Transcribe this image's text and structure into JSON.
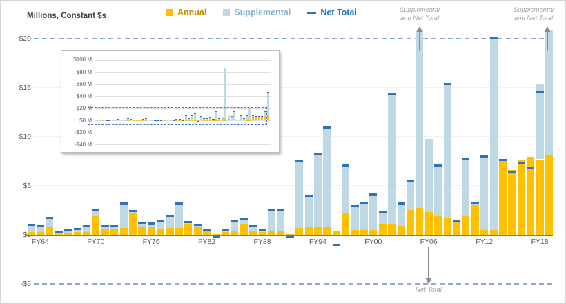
{
  "figure": {
    "title": "Millions, Constant $s",
    "legend": [
      {
        "label": "Annual",
        "swatch": "#FFC000",
        "text_color": "#BF9000",
        "marker": "square"
      },
      {
        "label": "Supplemental",
        "swatch": "#BFD9E4",
        "text_color": "#8DB4CC",
        "marker": "square"
      },
      {
        "label": "Net Total",
        "swatch": "#2E74B5",
        "text_color": "#2E74B5",
        "marker": "dash"
      }
    ],
    "annotations": {
      "top_left": {
        "line1": "Supplemental",
        "line2": "and Net Total"
      },
      "top_right": {
        "line1": "Supplemental",
        "line2": "and Net Total"
      },
      "bottom": {
        "label": "Net Total"
      }
    }
  },
  "chart_data": {
    "type": "bar",
    "stacked": true,
    "title": "Millions, Constant $s",
    "ylabel": "Millions, Constant $s",
    "legend_position": "top",
    "ylim_main": [
      -5,
      20
    ],
    "y_ticks_main": [
      {
        "label": "$20",
        "value": 20
      },
      {
        "label": "$15",
        "value": 15
      },
      {
        "label": "$10",
        "value": 10
      },
      {
        "label": "$5",
        "value": 5
      },
      {
        "label": "$0",
        "value": 0
      },
      {
        "label": "-$5",
        "value": -5
      }
    ],
    "grid_values": [
      5,
      10,
      15
    ],
    "dashed_values": [
      20,
      -5
    ],
    "x_ticks": [
      {
        "label": "FY64",
        "year": 1964
      },
      {
        "label": "FY70",
        "year": 1970
      },
      {
        "label": "FY76",
        "year": 1976
      },
      {
        "label": "FY82",
        "year": 1982
      },
      {
        "label": "FY88",
        "year": 1988
      },
      {
        "label": "FY94",
        "year": 1994
      },
      {
        "label": "FY00",
        "year": 2000
      },
      {
        "label": "FY06",
        "year": 2006
      },
      {
        "label": "FY12",
        "year": 2012
      },
      {
        "label": "FY18",
        "year": 2018
      }
    ],
    "years": [
      1963,
      1964,
      1965,
      1966,
      1967,
      1968,
      1969,
      1970,
      1971,
      1972,
      1973,
      1974,
      1975,
      1976,
      1977,
      1978,
      1979,
      1980,
      1981,
      1982,
      1983,
      1984,
      1985,
      1986,
      1987,
      1988,
      1989,
      1990,
      1991,
      1992,
      1993,
      1994,
      1995,
      1996,
      1997,
      1998,
      1999,
      2000,
      2001,
      2002,
      2003,
      2004,
      2005,
      2006,
      2007,
      2008,
      2009,
      2010,
      2011,
      2012,
      2013,
      2014,
      2015,
      2016,
      2017,
      2018,
      2019
    ],
    "series": [
      {
        "name": "Annual",
        "color": "#FFC000",
        "values": [
          0.25,
          0.3,
          0.75,
          0.15,
          0.2,
          0.25,
          0.3,
          1.9,
          0.63,
          0.63,
          0.68,
          2.27,
          0.87,
          0.87,
          0.6,
          0.68,
          0.7,
          1.15,
          0.85,
          0.35,
          0.05,
          0.3,
          0.35,
          1.15,
          0.4,
          0.3,
          0.45,
          0.45,
          0.05,
          0.7,
          0.75,
          0.75,
          0.8,
          0.35,
          2.2,
          0.5,
          0.5,
          0.5,
          1.1,
          1.1,
          0.9,
          2.5,
          2.75,
          2.3,
          1.9,
          1.7,
          1.55,
          1.9,
          3.1,
          0.5,
          0.5,
          7.6,
          6.6,
          7.6,
          7.95,
          7.7,
          8.15
        ]
      },
      {
        "name": "Supplemental",
        "color": "#BFD9E4",
        "values": [
          0.75,
          0.55,
          0.95,
          0.15,
          0.25,
          0.35,
          0.55,
          0.7,
          0.32,
          0.22,
          2.52,
          0.13,
          0.33,
          0.3,
          0.8,
          1.24,
          2.5,
          0.15,
          0.2,
          0.2,
          0,
          0.25,
          1.05,
          0.45,
          0.5,
          0.15,
          2.1,
          2.1,
          0,
          6.8,
          3.25,
          7.45,
          10.15,
          0.05,
          4.9,
          2.5,
          2.8,
          3.6,
          1.2,
          13.2,
          2.3,
          3.05,
          84.25,
          7.5,
          5.2,
          13.65,
          0,
          5.8,
          0.2,
          7.5,
          19.6,
          0,
          0,
          0,
          0,
          7.7,
          38.85
        ]
      },
      {
        "name": "Net Total",
        "color": "#2E74B5",
        "values": [
          1.0,
          0.85,
          1.7,
          0.3,
          0.45,
          0.6,
          0.85,
          2.6,
          0.95,
          0.85,
          3.2,
          2.4,
          1.2,
          1.17,
          1.4,
          1.92,
          3.2,
          1.3,
          1.05,
          0.55,
          -0.2,
          0.55,
          1.4,
          1.6,
          0.9,
          0.45,
          2.55,
          2.55,
          -0.15,
          7.5,
          4.0,
          8.2,
          10.95,
          -1.05,
          7.1,
          3.0,
          3.3,
          4.1,
          2.3,
          14.3,
          3.2,
          5.55,
          87,
          -20,
          7.1,
          15.35,
          1.4,
          7.7,
          3.3,
          8.0,
          20.1,
          7.6,
          6.45,
          7.3,
          6.8,
          14.6,
          47
        ]
      }
    ],
    "offscale_high_years": [
      2005,
      2019
    ],
    "net_offscale_low_years": [
      2006
    ],
    "inset": {
      "ylim": [
        -45,
        108
      ],
      "zoom_window": [
        -5,
        20
      ],
      "y_ticks": [
        {
          "label": "$100 M",
          "value": 100
        },
        {
          "label": "$80 M",
          "value": 80
        },
        {
          "label": "$60 M",
          "value": 60
        },
        {
          "label": "$40 M",
          "value": 40
        },
        {
          "label": "$20 M",
          "value": 20
        },
        {
          "label": "$0 M",
          "value": 0
        },
        {
          "label": "-$20 M",
          "value": -20
        },
        {
          "label": "-$40 M",
          "value": -40
        }
      ]
    }
  }
}
